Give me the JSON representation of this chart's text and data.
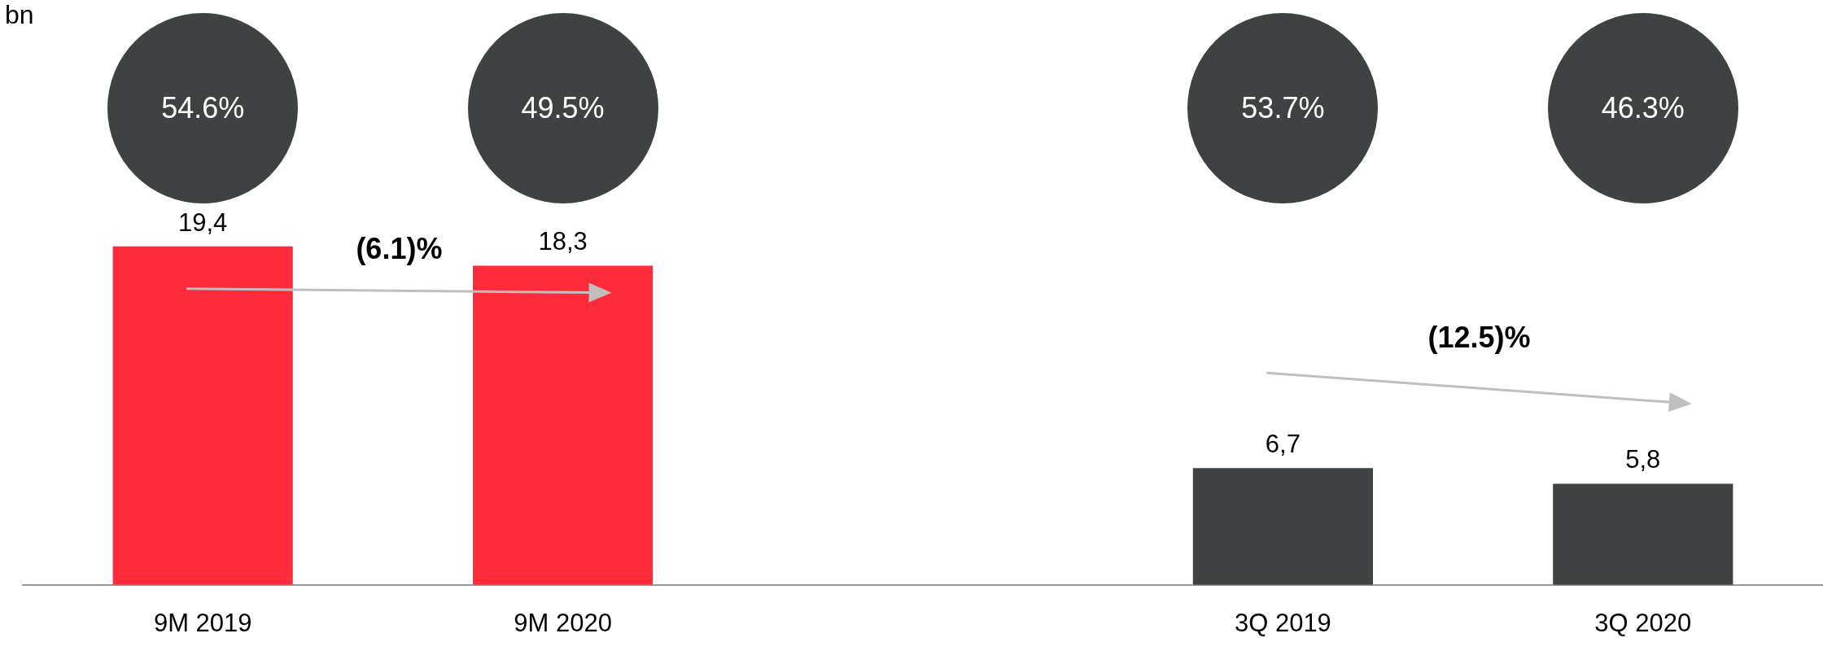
{
  "chart_data": {
    "type": "bar",
    "categories": [
      "9M 2019",
      "9M 2020",
      null,
      "3Q 2019",
      "3Q 2020"
    ],
    "values": [
      19.4,
      18.3,
      null,
      6.7,
      5.8
    ],
    "value_labels": [
      "19,4",
      "18,3",
      null,
      "6,7",
      "5,8"
    ],
    "colors": [
      "#ff2b3a",
      "#ff2b3a",
      null,
      "#3f4243",
      "#3f4243"
    ],
    "tick_labels": "x",
    "grid": false,
    "legend": false,
    "annotations": [
      "54.6%",
      "49.5%",
      "53.7%",
      "46.3%",
      "(6.1)%",
      "(12.5)%",
      "bn"
    ]
  }
}
